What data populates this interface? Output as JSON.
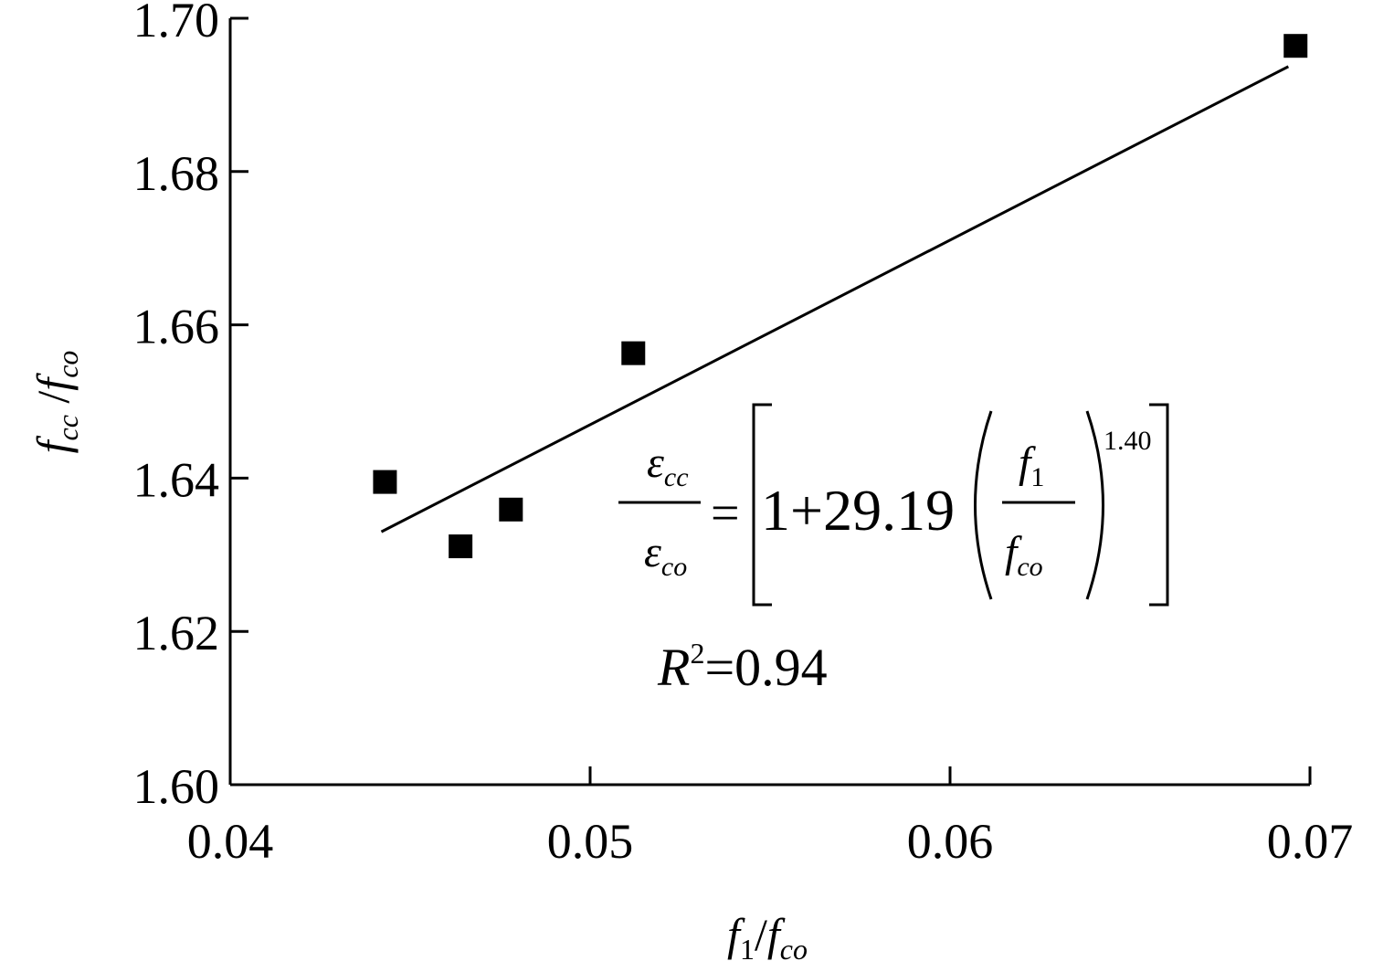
{
  "chart_data": {
    "type": "scatter",
    "title": "",
    "xlabel": {
      "main": "f",
      "sub1": "1",
      "slash": "/",
      "main2": "f",
      "sub2": "co"
    },
    "ylabel": {
      "main": "f",
      "sub1": "cc",
      "slash": " /",
      "main2": "f",
      "sub2": "co"
    },
    "xlim": [
      0.04,
      0.07
    ],
    "ylim": [
      1.6,
      1.7
    ],
    "x_ticks": [
      "0.04",
      "0.05",
      "0.06",
      "0.07"
    ],
    "y_ticks": [
      "1.60",
      "1.62",
      "1.64",
      "1.66",
      "1.68",
      "1.70"
    ],
    "grid": false,
    "marker": "filled-square",
    "color": "#000000",
    "points": [
      {
        "x": 0.0443,
        "y": 1.6395
      },
      {
        "x": 0.0464,
        "y": 1.6311
      },
      {
        "x": 0.0478,
        "y": 1.6359
      },
      {
        "x": 0.0512,
        "y": 1.6563
      },
      {
        "x": 0.0696,
        "y": 1.6964
      }
    ],
    "fit_line": {
      "x": [
        0.0442,
        0.0694
      ],
      "y": [
        1.633,
        1.6937
      ]
    },
    "annotation": {
      "lhs_num": "ε",
      "lhs_num_sub": "cc",
      "lhs_den": "ε",
      "lhs_den_sub": "co",
      "equals": "=",
      "constant": "1+29.19",
      "inner_num": "f",
      "inner_num_sub": "1",
      "inner_den": "f",
      "inner_den_sub": "co",
      "exponent": "1.40",
      "r2_label": "R",
      "r2_sup": "2",
      "r2_value": "=0.94"
    }
  }
}
